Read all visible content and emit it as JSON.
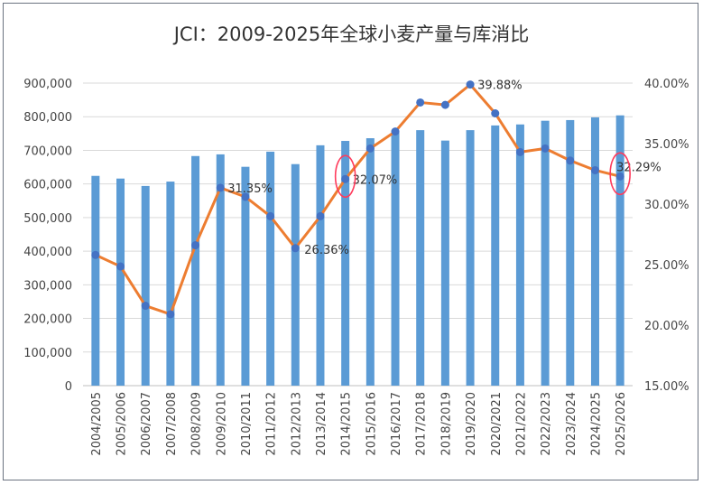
{
  "chart_data": {
    "type": "bar+line",
    "title": "JCI：2009-2025年全球小麦产量与库消比",
    "categories": [
      "2004/2005",
      "2005/2006",
      "2006/2007",
      "2007/2008",
      "2008/2009",
      "2009/2010",
      "2010/2011",
      "2011/2012",
      "2012/2013",
      "2013/2014",
      "2014/2015",
      "2015/2016",
      "2016/2017",
      "2017/2018",
      "2018/2019",
      "2019/2020",
      "2020/2021",
      "2021/2022",
      "2022/2023",
      "2023/2024",
      "2024/2025",
      "2025/2026"
    ],
    "series": [
      {
        "type": "bar",
        "axis": "left",
        "color": "#5b9bd5",
        "values": [
          624000,
          616000,
          594000,
          607000,
          683000,
          688000,
          651000,
          696000,
          659000,
          715000,
          728000,
          736000,
          758000,
          760000,
          729000,
          760000,
          774000,
          777000,
          788000,
          790000,
          798000,
          804000
        ]
      },
      {
        "type": "line",
        "axis": "right",
        "color": "#ed7d31",
        "marker_color": "#4472c4",
        "values": [
          25.8,
          24.85,
          21.6,
          20.9,
          26.6,
          31.35,
          30.6,
          29.0,
          26.36,
          29.0,
          32.07,
          34.6,
          36.0,
          38.4,
          38.2,
          39.88,
          37.5,
          34.3,
          34.6,
          33.6,
          32.8,
          32.29
        ]
      }
    ],
    "left_axis": {
      "ylim": [
        0,
        900000
      ],
      "ticks": [
        "0",
        "100,000",
        "200,000",
        "300,000",
        "400,000",
        "500,000",
        "600,000",
        "700,000",
        "800,000",
        "900,000"
      ]
    },
    "right_axis": {
      "ylim": [
        15,
        40
      ],
      "ticks": [
        "15.00%",
        "20.00%",
        "25.00%",
        "30.00%",
        "35.00%",
        "40.00%"
      ]
    },
    "data_labels": [
      {
        "index": 5,
        "text": "31.35%"
      },
      {
        "index": 8,
        "text": "26.36%"
      },
      {
        "index": 10,
        "text": "32.07%"
      },
      {
        "index": 15,
        "text": "39.88%"
      },
      {
        "index": 21,
        "text": "32.29%"
      }
    ],
    "highlight_indices": [
      10,
      21
    ],
    "highlight_color": "#ff3b5c",
    "grid": true,
    "legend": "none"
  }
}
